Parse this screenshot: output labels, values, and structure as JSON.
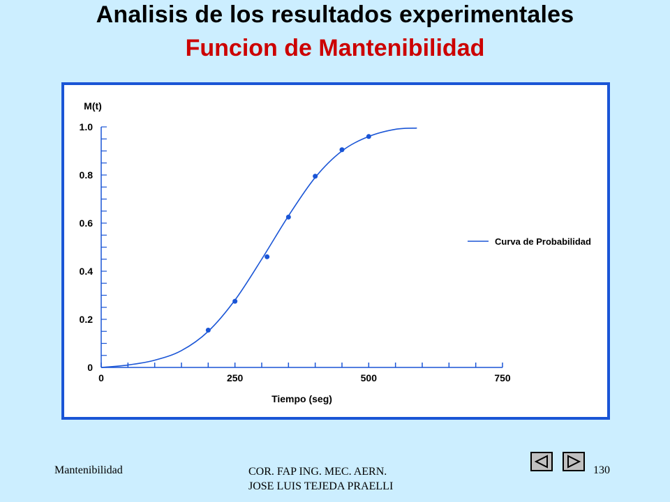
{
  "slide": {
    "title": "Analisis de los resultados experimentales",
    "subtitle": "Funcion de Mantenibilidad"
  },
  "footer": {
    "left": "Mantenibilidad",
    "center_line1": "COR. FAP ING. MEC. AERN.",
    "center_line2": "JOSE  LUIS TEJEDA PRAELLI",
    "page_number": "130"
  },
  "nav": {
    "prev_icon": "triangle-left-icon",
    "next_icon": "triangle-right-icon"
  },
  "colors": {
    "background": "#cceeff",
    "frame_border": "#1a55d6",
    "curve": "#1a55d6",
    "subtitle": "#cc0000"
  },
  "chart_data": {
    "type": "line",
    "ylabel": "M(t)",
    "xlabel": "Tiempo (seg)",
    "xlim": [
      0,
      750
    ],
    "ylim": [
      0,
      1.0
    ],
    "x_ticks": [
      "0",
      "250",
      "500",
      "750"
    ],
    "y_ticks": [
      "0",
      "0.2",
      "0.4",
      "0.6",
      "0.8",
      "1.0"
    ],
    "legend": "right",
    "grid": false,
    "series": [
      {
        "name": "Curva de Probabilidad",
        "curve": [
          [
            0,
            0.0
          ],
          [
            50,
            0.01
          ],
          [
            100,
            0.03
          ],
          [
            150,
            0.07
          ],
          [
            200,
            0.15
          ],
          [
            250,
            0.28
          ],
          [
            300,
            0.45
          ],
          [
            350,
            0.63
          ],
          [
            400,
            0.79
          ],
          [
            450,
            0.9
          ],
          [
            500,
            0.96
          ],
          [
            550,
            0.99
          ],
          [
            590,
            0.995
          ]
        ],
        "points": [
          [
            200,
            0.155
          ],
          [
            250,
            0.275
          ],
          [
            310,
            0.46
          ],
          [
            350,
            0.625
          ],
          [
            400,
            0.795
          ],
          [
            450,
            0.905
          ],
          [
            500,
            0.96
          ]
        ]
      }
    ]
  }
}
